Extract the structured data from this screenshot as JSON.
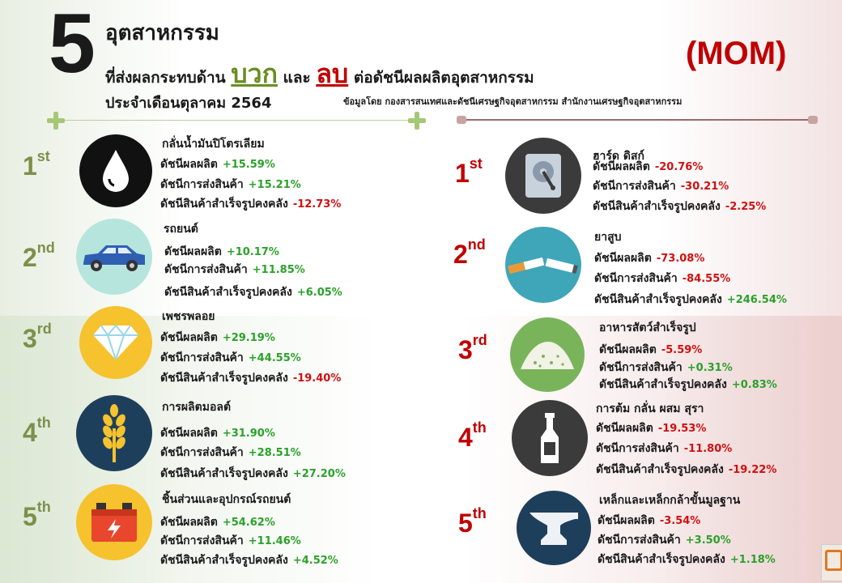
{
  "header": {
    "big_number": "5",
    "line1": "อุตสาหกรรม",
    "line2_pre": "ที่ส่งผลกระทบด้าน",
    "line2_pos": "บวก",
    "line2_mid": "และ",
    "line2_neg": "ลบ",
    "line2_post": "ต่อดัชนีผลผลิตอุตสาหกรรม",
    "line3": "ประจำเดือนตุลาคม 2564",
    "badge": "(MOM)",
    "source": "ข้อมูลโดย กองสารสนเทศและดัชนีเศรษฐกิจอุตสาหกรรม สำนักงานเศรษฐกิจอุตสาหกรรม"
  },
  "positive": [
    {
      "rank_num": "1",
      "rank_suffix": "st",
      "icon": "oil-drop-icon",
      "name": "กลั่นน้ำมันปิโตรเลียม",
      "l1": "ดัชนีผลผลิต",
      "v1": "+15.59%",
      "l2": "ดัชนีการส่งสินค้า",
      "v2": "+15.21%",
      "l3": "ดัชนีสินค้าสำเร็จรูปคงคลัง",
      "v3": "-12.73%"
    },
    {
      "rank_num": "2",
      "rank_suffix": "nd",
      "icon": "car-icon",
      "name": "รถยนต์",
      "l1": "ดัชนีผลผลิต",
      "v1": "+10.17%",
      "l2": "ดัชนีการส่งสินค้า",
      "v2": "+11.85%",
      "l3": "ดัชนีสินค้าสำเร็จรูปคงคลัง",
      "v3": "+6.05%"
    },
    {
      "rank_num": "3",
      "rank_suffix": "rd",
      "icon": "diamond-icon",
      "name": "เพชรพลอย",
      "l1": "ดัชนีผลผลิต",
      "v1": "+29.19%",
      "l2": "ดัชนีการส่งสินค้า",
      "v2": "+44.55%",
      "l3": "ดัชนีสินค้าสำเร็จรูปคงคลัง",
      "v3": "-19.40%"
    },
    {
      "rank_num": "4",
      "rank_suffix": "th",
      "icon": "wheat-icon",
      "name": "การผลิตมอลต์",
      "l1": "ดัชนีผลผลิต",
      "v1": "+31.90%",
      "l2": "ดัชนีการส่งสินค้า",
      "v2": "+28.51%",
      "l3": "ดัชนีสินค้าสำเร็จรูปคงคลัง",
      "v3": "+27.20%"
    },
    {
      "rank_num": "5",
      "rank_suffix": "th",
      "icon": "car-battery-icon",
      "name": "ชิ้นส่วนและอุปกรณ์รถยนต์",
      "l1": "ดัชนีผลผลิต",
      "v1": "+54.62%",
      "l2": "ดัชนีการส่งสินค้า",
      "v2": "+11.46%",
      "l3": "ดัชนีสินค้าสำเร็จรูปคงคลัง",
      "v3": "+4.52%"
    }
  ],
  "negative": [
    {
      "rank_num": "1",
      "rank_suffix": "st",
      "icon": "hard-disk-icon",
      "name": "ฮาร์ด ดิสก์",
      "l1": "ดัชนีผลผลิต",
      "v1": "-20.76%",
      "l2": "ดัชนีการส่งสินค้า",
      "v2": "-30.21%",
      "l3": "ดัชนีสินค้าสำเร็จรูปคงคลัง",
      "v3": "-2.25%"
    },
    {
      "rank_num": "2",
      "rank_suffix": "nd",
      "icon": "cigarette-icon",
      "name": "ยาสูบ",
      "l1": "ดัชนีผลผลิต",
      "v1": "-73.08%",
      "l2": "ดัชนีการส่งสินค้า",
      "v2": "-84.55%",
      "l3": "ดัชนีสินค้าสำเร็จรูปคงคลัง",
      "v3": "+246.54%"
    },
    {
      "rank_num": "3",
      "rank_suffix": "rd",
      "icon": "animal-feed-icon",
      "name": "อาหารสัตว์สำเร็จรูป",
      "l1": "ดัชนีผลผลิต",
      "v1": "-5.59%",
      "l2": "ดัชนีการส่งสินค้า",
      "v2": "+0.31%",
      "l3": "ดัชนีสินค้าสำเร็จรูปคงคลัง",
      "v3": "+0.83%"
    },
    {
      "rank_num": "4",
      "rank_suffix": "th",
      "icon": "bottle-icon",
      "name": "การต้ม กลั่น ผสม สุรา",
      "l1": "ดัชนีผลผลิต",
      "v1": "-19.53%",
      "l2": "ดัชนีการส่งสินค้า",
      "v2": "-11.80%",
      "l3": "ดัชนีสินค้าสำเร็จรูปคงคลัง",
      "v3": "-19.22%"
    },
    {
      "rank_num": "5",
      "rank_suffix": "th",
      "icon": "anvil-icon",
      "name": "เหล็กและเหล็กกล้าขั้นมูลฐาน",
      "l1": "ดัชนีผลผลิต",
      "v1": "-3.54%",
      "l2": "ดัชนีการส่งสินค้า",
      "v2": "+3.50%",
      "l3": "ดัชนีสินค้าสำเร็จรูปคงคลัง",
      "v3": "+1.18%"
    }
  ],
  "colors": {
    "positive_heading": "#6b8e23",
    "negative_heading": "#c00000",
    "value_up": "#2aa12a",
    "value_down": "#d01010"
  }
}
